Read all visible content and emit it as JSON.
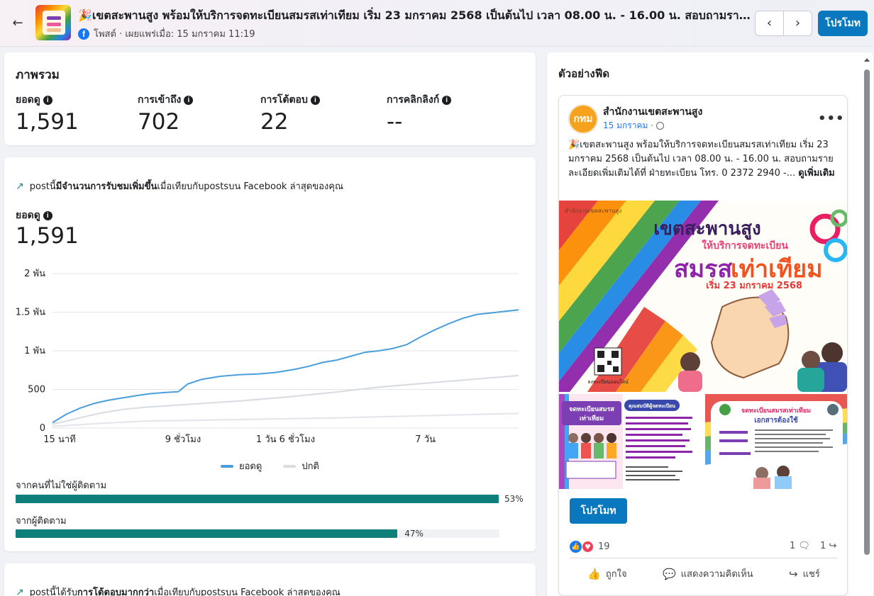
{
  "header": {
    "back_icon": "arrow-left-icon",
    "post_title": "🎉เขตสะพานสูง พร้อมให้บริการจดทะเบียนสมรสเท่าเทียม เริ่ม 23 มกราคม 2568 เป็นต้นไป เวลา 08.00 น. - 16.00 น. สอบถามรายละเอียดเพิ่มเติมได้ที่ ฝ่ายทะเบียน",
    "meta": "โพสต์ · เผยแพร่เมื่อ: 15 มกราคม 11:19",
    "prev_icon": "‹",
    "next_icon": "›",
    "promote_label": "โปรโมท"
  },
  "overview": {
    "title": "ภาพรวม",
    "metrics": [
      {
        "label": "ยอดดู",
        "value": "1,591"
      },
      {
        "label": "การเข้าถึง",
        "value": "702"
      },
      {
        "label": "การโต้ตอบ",
        "value": "22"
      },
      {
        "label": "การคลิกลิงก์",
        "value": "--"
      }
    ]
  },
  "growth": {
    "headline_prefix": "postนี้",
    "headline_bold": "มีจำนวนการรับชมเพิ่มขึ้น",
    "headline_suffix": "เมื่อเทียบกับpostsบน Facebook ล่าสุดของคุณ",
    "views_label": "ยอดดู",
    "views_value": "1,591",
    "legend": [
      {
        "name": "ยอดดู",
        "color": "#4a9edb"
      },
      {
        "name": "ปกติ",
        "color": "#dadde1"
      }
    ],
    "bars": [
      {
        "label": "จากคนที่ไม่ใช่ผู้ติดตาม",
        "percent": 53,
        "percent_label": "53%"
      },
      {
        "label": "จากผู้ติดตาม",
        "percent": 47,
        "percent_label": "47%"
      }
    ]
  },
  "chart_data": {
    "type": "line",
    "y_ticks": [
      0,
      500,
      1000,
      1500,
      2000
    ],
    "y_tick_labels": [
      "0",
      "500",
      "1 พัน",
      "1.5 พัน",
      "2 พัน"
    ],
    "ylim": [
      0,
      2000
    ],
    "x_tick_labels": [
      "15 นาที",
      "9 ชั่วโมง",
      "1 วัน 6 ชั่วโมง",
      "7 วัน"
    ],
    "x_tick_positions": [
      0,
      28,
      50,
      80
    ],
    "xlim": [
      0,
      100
    ],
    "grid": true,
    "series": [
      {
        "name": "ยอดดู",
        "color": "#4a9edb",
        "x": [
          0,
          3,
          6,
          9,
          12,
          15,
          18,
          21,
          24,
          27,
          29,
          32,
          36,
          40,
          44,
          48,
          52,
          55,
          58,
          61,
          64,
          67,
          70,
          73,
          76,
          79,
          82,
          85,
          88,
          91,
          94,
          97,
          100
        ],
        "y": [
          70,
          180,
          260,
          320,
          360,
          390,
          420,
          445,
          460,
          470,
          570,
          630,
          670,
          690,
          700,
          720,
          760,
          800,
          850,
          880,
          930,
          980,
          1000,
          1030,
          1080,
          1180,
          1270,
          1350,
          1420,
          1470,
          1490,
          1510,
          1530
        ]
      },
      {
        "name": "ปกติ",
        "color": "#dadde1",
        "x": [
          0,
          5,
          10,
          15,
          20,
          25,
          30,
          40,
          50,
          60,
          70,
          80,
          90,
          100
        ],
        "y": [
          50,
          120,
          190,
          240,
          270,
          290,
          310,
          350,
          400,
          460,
          530,
          580,
          630,
          680
        ]
      },
      {
        "name": "",
        "color": "#e4e6eb",
        "x": [
          0,
          10,
          20,
          30,
          40,
          50,
          60,
          70,
          80,
          90,
          100
        ],
        "y": [
          20,
          60,
          90,
          100,
          110,
          120,
          130,
          145,
          160,
          175,
          190
        ]
      }
    ]
  },
  "next_card": {
    "headline_prefix": "postนี้ได้รับ",
    "headline_bold": "การโต้ตอบมากกว่า",
    "headline_suffix": "เมื่อเทียบกับpostsบน Facebook ล่าสุดของคุณ"
  },
  "preview": {
    "title": "ตัวอย่างฟีด",
    "page_name": "สำนักงานเขตสะพานสูง",
    "avatar_text": "กทม",
    "post_date": "15 มกราคม ·",
    "more_icon": "•••",
    "post_text": "🎉เขตสะพานสูง พร้อมให้บริการจดทะเบียนสมรสเท่าเทียม เริ่ม 23 มกราคม 2568 เป็นต้นไป เวลา 08.00 น. - 16.00 น. สอบถามรายละเอียดเพิ่มเติมได้ที่ ฝ่ายทะเบียน โทร. 0 2372 2940 -... ",
    "see_more": "ดูเพิ่มเติม",
    "hero": {
      "office": "สำนักงานเขตสะพานสูง",
      "line1": "เขตสะพานสูง",
      "line2": "ให้บริการจดทะเบียน",
      "line3a": "สมรส",
      "line3b": "เท่าเทียม",
      "line4": "เริ่ม 23 มกราคม 2568",
      "qr_caption": "ลงทะเบียนออนไลน์"
    },
    "sub_left": {
      "title1": "จดทะเบียนสมรส",
      "title2": "เท่าเทียม",
      "card_title": "คุณสมบัติผู้จดทะเบียน"
    },
    "sub_right": {
      "title1": "จดทะเบียนสมรสเท่าเทียม",
      "title2": "เอกสารต้องใช้"
    },
    "promote_label": "โปรโมท",
    "reaction_count": "19",
    "comments_count": "1",
    "shares_count": "1",
    "actions": [
      {
        "label": "ถูกใจ",
        "icon": "like-icon",
        "glyph": "👍"
      },
      {
        "label": "แสดงความคิดเห็น",
        "icon": "comment-icon",
        "glyph": "💬"
      },
      {
        "label": "แชร์",
        "icon": "share-icon",
        "glyph": "↪"
      }
    ]
  }
}
